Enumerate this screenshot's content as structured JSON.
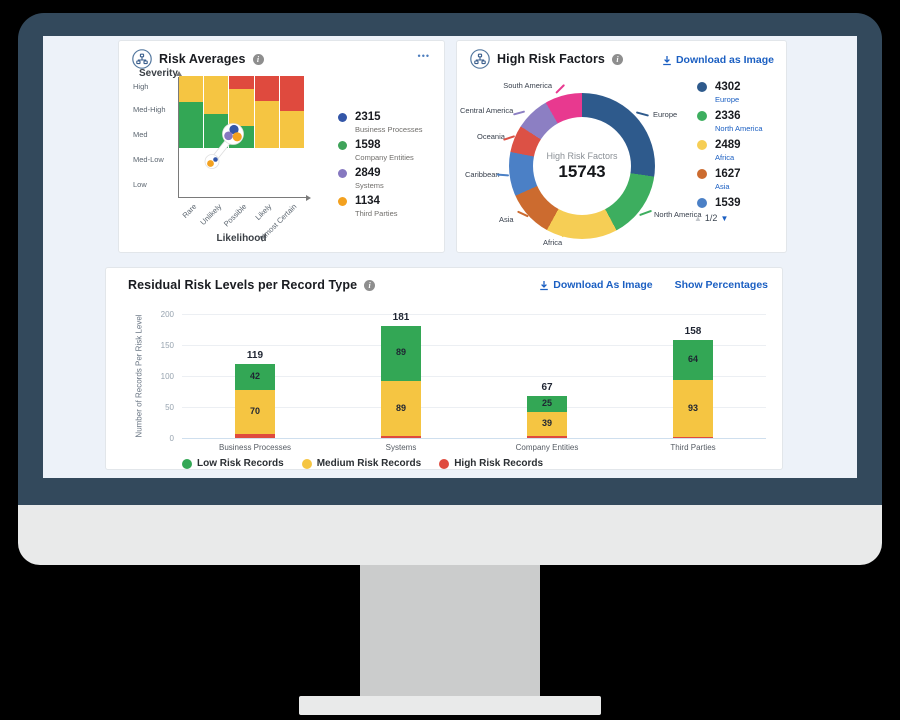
{
  "palette": {
    "green": "#33A755",
    "yellow": "#F5C542",
    "red": "#DF4A3E",
    "link_blue": "#1B5FC2"
  },
  "risk_averages": {
    "title": "Risk Averages",
    "menu_label": "•••",
    "y_axis_title": "Severity",
    "x_axis_title": "Likelihood",
    "severity_labels": [
      "High",
      "Med-High",
      "Med",
      "Med-Low",
      "Low"
    ],
    "likelihood_labels": [
      "Rare",
      "Unlikely",
      "Possible",
      "Likely",
      "Almost Certain"
    ],
    "legend": [
      {
        "value": "2315",
        "label": "Business Processes",
        "color": "#3356A8"
      },
      {
        "value": "1598",
        "label": "Company Entities",
        "color": "#3FA35A"
      },
      {
        "value": "2849",
        "label": "Systems",
        "color": "#8678C0"
      },
      {
        "value": "1134",
        "label": "Third Parties",
        "color": "#F3A11F"
      }
    ]
  },
  "high_risk_factors": {
    "title": "High Risk Factors",
    "download_label": "Download as Image",
    "center_label": "High Risk Factors",
    "center_value": "15743",
    "legend": [
      {
        "value": "4302",
        "label": "Europe",
        "color": "#2E5A8C"
      },
      {
        "value": "2336",
        "label": "North America",
        "color": "#3DAE5F"
      },
      {
        "value": "2489",
        "label": "Africa",
        "color": "#F6CE55"
      },
      {
        "value": "1627",
        "label": "Asia",
        "color": "#CC6B2F"
      },
      {
        "value": "1539",
        "label": "",
        "color": "#4B80C6"
      }
    ],
    "pagination": "1/2"
  },
  "residual": {
    "title": "Residual Risk Levels per Record Type",
    "download_label": "Download As Image",
    "percentages_label": "Show Percentages",
    "y_ticks": [
      "200",
      "150",
      "100",
      "50",
      "0"
    ],
    "legend": [
      "Low Risk Records",
      "Medium Risk Records",
      "High Risk Records"
    ]
  },
  "chart_data": [
    {
      "id": "risk-averages-heatmap",
      "type": "heatmap",
      "title": "Risk Averages",
      "x_axis": {
        "title": "Likelihood",
        "labels": [
          "Rare",
          "Unlikely",
          "Possible",
          "Likely",
          "Almost Certain"
        ]
      },
      "y_axis": {
        "title": "Severity",
        "labels": [
          "High",
          "Med-High",
          "Med",
          "Med-Low",
          "Low"
        ]
      },
      "columns": [
        {
          "likelihood": "Rare",
          "segments": [
            {
              "color": "yellow",
              "pct": 36
            },
            {
              "color": "green",
              "pct": 64
            }
          ]
        },
        {
          "likelihood": "Unlikely",
          "segments": [
            {
              "color": "yellow",
              "pct": 53
            },
            {
              "color": "green",
              "pct": 47
            }
          ]
        },
        {
          "likelihood": "Possible",
          "segments": [
            {
              "color": "red",
              "pct": 18
            },
            {
              "color": "yellow",
              "pct": 51
            },
            {
              "color": "green",
              "pct": 31
            }
          ]
        },
        {
          "likelihood": "Likely",
          "segments": [
            {
              "color": "red",
              "pct": 35
            },
            {
              "color": "yellow",
              "pct": 65
            }
          ]
        },
        {
          "likelihood": "Almost Certain",
          "segments": [
            {
              "color": "red",
              "pct": 49
            },
            {
              "color": "yellow",
              "pct": 51
            }
          ]
        }
      ],
      "trend_marker": {
        "from": {
          "likelihood": "Unlikely",
          "severity": "Med-Low"
        },
        "to": {
          "likelihood": "Possible",
          "severity": "Med"
        },
        "point_colors": [
          "#3356A8",
          "#8678C0",
          "#F3A11F"
        ]
      },
      "legend_values": {
        "Business Processes": 2315,
        "Company Entities": 1598,
        "Systems": 2849,
        "Third Parties": 1134
      }
    },
    {
      "id": "high-risk-factors-donut",
      "type": "pie",
      "title": "High Risk Factors",
      "total": 15743,
      "segments": [
        {
          "region": "Europe",
          "value": 4302,
          "color": "#2E5A8C"
        },
        {
          "region": "North America",
          "value": 2336,
          "color": "#3DAE5F"
        },
        {
          "region": "Africa",
          "value": 2489,
          "color": "#F6CE55"
        },
        {
          "region": "Asia",
          "value": 1627,
          "color": "#CC6B2F"
        },
        {
          "region": "Caribbean",
          "value": 1539,
          "color": "#4B80C6"
        },
        {
          "region": "Oceania",
          "value": 950,
          "color": "#DC5145",
          "estimated": true
        },
        {
          "region": "Central America",
          "value": 1200,
          "color": "#8C7FC3",
          "estimated": true
        },
        {
          "region": "South America",
          "value": 1300,
          "color": "#E8398F",
          "estimated": true
        }
      ]
    },
    {
      "id": "residual-stacked-bar",
      "type": "bar",
      "stacked": true,
      "title": "Residual Risk Levels per Record Type",
      "ylabel": "Number of Records Per Risk Level",
      "ylim": [
        0,
        200
      ],
      "categories": [
        "Business Processes",
        "Systems",
        "Company Entities",
        "Third Parties"
      ],
      "series": [
        {
          "name": "Low Risk Records",
          "color": "#33A755",
          "values": [
            42,
            89,
            25,
            64
          ]
        },
        {
          "name": "Medium Risk Records",
          "color": "#F5C542",
          "values": [
            70,
            89,
            39,
            93
          ]
        },
        {
          "name": "High Risk Records",
          "color": "#DF4A3E",
          "values": [
            7,
            3,
            3,
            1
          ],
          "labels_visible": [
            true,
            true,
            false,
            true
          ]
        }
      ],
      "totals": [
        119,
        181,
        67,
        158
      ]
    }
  ]
}
